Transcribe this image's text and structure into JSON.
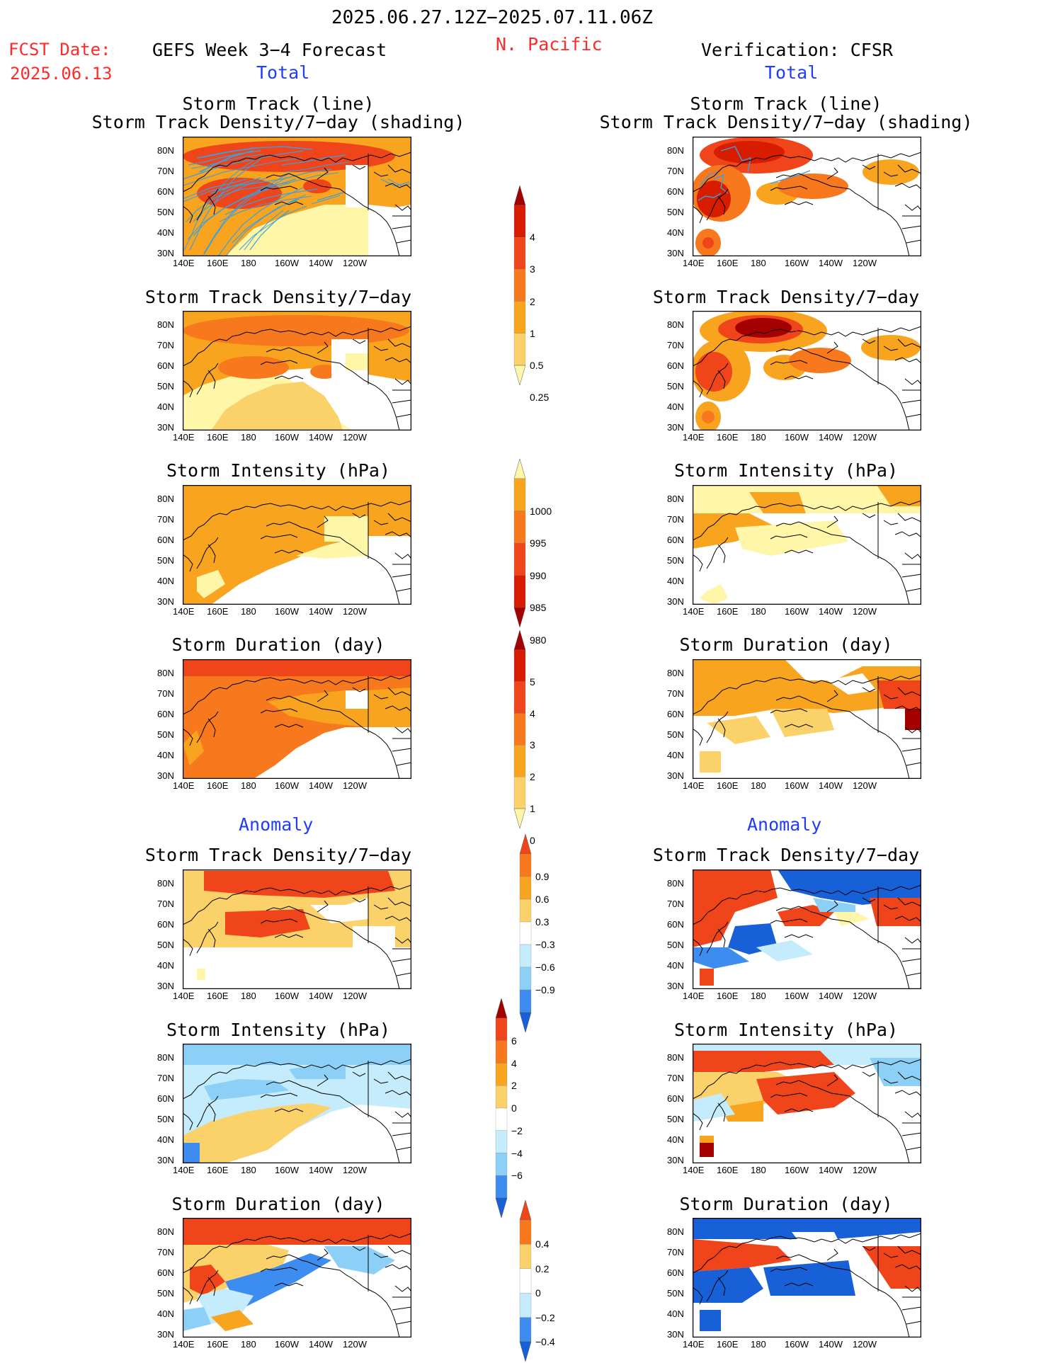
{
  "header": {
    "date_range": "2025.06.27.12Z−2025.07.11.06Z",
    "region": "N. Pacific",
    "fcst_label": "FCST Date:",
    "fcst_date": "2025.06.13",
    "left_title": "GEFS Week 3−4 Forecast",
    "right_title": "Verification: CFSR",
    "total_label": "Total",
    "anomaly_label": "Anomaly"
  },
  "panel_titles": {
    "track_line": "Storm Track (line)",
    "track_shading": "Storm Track Density/7−day (shading)",
    "density": "Storm Track Density/7−day",
    "intensity": "Storm Intensity (hPa)",
    "duration": "Storm Duration (day)"
  },
  "axes": {
    "lat": [
      "80N",
      "70N",
      "60N",
      "50N",
      "40N",
      "30N"
    ],
    "lon": [
      "140E",
      "160E",
      "180",
      "160W",
      "140W",
      "120W"
    ]
  },
  "colorbars": {
    "density_total": [
      "4",
      "3",
      "2",
      "1",
      "0.5",
      "0.25"
    ],
    "intensity_total": [
      "1000",
      "995",
      "990",
      "985",
      "980"
    ],
    "duration_total": [
      "5",
      "4",
      "3",
      "2",
      "1",
      "0"
    ],
    "density_anom": [
      "0.9",
      "0.6",
      "0.3",
      "−0.3",
      "−0.6",
      "−0.9"
    ],
    "intensity_anom": [
      "6",
      "4",
      "2",
      "0",
      "−2",
      "−4",
      "−6"
    ],
    "duration_anom": [
      "0.4",
      "0.2",
      "0",
      "−0.2",
      "−0.4"
    ]
  },
  "colors": {
    "c_darkred": "#a50000",
    "c_red": "#d81c00",
    "c_redorange": "#f0441a",
    "c_orange": "#f8781e",
    "c_amber": "#f8a41e",
    "c_lightamber": "#fbd26a",
    "c_paleyellow": "#fff6a8",
    "c_paleblue": "#c4ecfc",
    "c_lightblue": "#8cd0f8",
    "c_blue": "#3d8cf0",
    "c_deepblue": "#1860d8",
    "track_line": "#3aa0e0"
  }
}
